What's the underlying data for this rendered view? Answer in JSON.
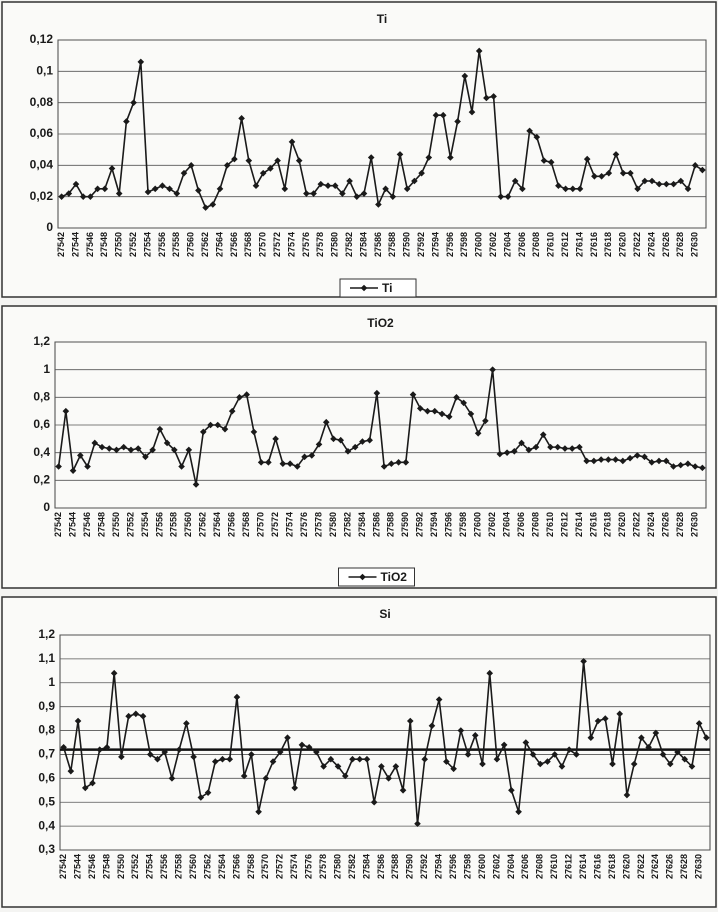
{
  "chart_data": [
    {
      "type": "line",
      "title": "Ti",
      "legend": "bottom",
      "grid": true,
      "categories": [
        "27542",
        null,
        "27544",
        null,
        "27546",
        null,
        "27548",
        null,
        "27550",
        null,
        "27552",
        null,
        "27554",
        null,
        "27556",
        null,
        "27558",
        null,
        "27560",
        null,
        "27562",
        null,
        "27564",
        null,
        "27566",
        null,
        "27568",
        null,
        "27570",
        null,
        "27572",
        null,
        "27574",
        null,
        "27576",
        null,
        "27578",
        null,
        "27580",
        null,
        "27582",
        null,
        "27584",
        null,
        "27586",
        null,
        "27588",
        null,
        "27590",
        null,
        "27592",
        null,
        "27594",
        null,
        "27596",
        null,
        "27598",
        null,
        "27600",
        null,
        "27602",
        null,
        "27604",
        null,
        "27606",
        null,
        "27608",
        null,
        "27610",
        null,
        "27612",
        null,
        "27614",
        null,
        "27616",
        null,
        "27618",
        null,
        "27620",
        null,
        "27622",
        null,
        "27624",
        null,
        "27626",
        null,
        "27628",
        null,
        "27630",
        null
      ],
      "series": [
        {
          "name": "Ti",
          "color": "#1a1a1a",
          "values": [
            0.02,
            0.022,
            0.028,
            0.02,
            0.02,
            0.025,
            0.025,
            0.038,
            0.022,
            0.068,
            0.08,
            0.106,
            0.023,
            0.025,
            0.027,
            0.025,
            0.022,
            0.035,
            0.04,
            0.024,
            0.013,
            0.015,
            0.025,
            0.04,
            0.044,
            0.07,
            0.043,
            0.027,
            0.035,
            0.038,
            0.043,
            0.025,
            0.055,
            0.043,
            0.022,
            0.022,
            0.028,
            0.027,
            0.027,
            0.022,
            0.03,
            0.02,
            0.022,
            0.045,
            0.015,
            0.025,
            0.02,
            0.047,
            0.025,
            0.03,
            0.035,
            0.045,
            0.072,
            0.072,
            0.045,
            0.068,
            0.097,
            0.074,
            0.113,
            0.083,
            0.084,
            0.02,
            0.02,
            0.03,
            0.025,
            0.062,
            0.058,
            0.043,
            0.042,
            0.027,
            0.025,
            0.025,
            0.025,
            0.044,
            0.033,
            0.033,
            0.035,
            0.047,
            0.035,
            0.035,
            0.025,
            0.03,
            0.03,
            0.028,
            0.028,
            0.028,
            0.03,
            0.025,
            0.04,
            0.037
          ]
        }
      ],
      "ylim": [
        0,
        0.12
      ],
      "yticks": [
        0,
        {
          "value": 0.02,
          "label": "0,02"
        },
        {
          "value": 0.04,
          "label": "0,04"
        },
        {
          "value": 0.06,
          "label": "0,06"
        },
        {
          "value": 0.08,
          "label": "0,08"
        },
        {
          "value": 0.1,
          "label": "0,1"
        },
        {
          "value": 0.12,
          "label": "0,12"
        }
      ]
    },
    {
      "type": "line",
      "title": "TiO2",
      "legend": "bottom",
      "grid": true,
      "categories": [
        "27542",
        null,
        "27544",
        null,
        "27546",
        null,
        "27548",
        null,
        "27550",
        null,
        "27552",
        null,
        "27554",
        null,
        "27556",
        null,
        "27558",
        null,
        "27560",
        null,
        "27562",
        null,
        "27564",
        null,
        "27566",
        null,
        "27568",
        null,
        "27570",
        null,
        "27572",
        null,
        "27574",
        null,
        "27576",
        null,
        "27578",
        null,
        "27580",
        null,
        "27582",
        null,
        "27584",
        null,
        "27586",
        null,
        "27588",
        null,
        "27590",
        null,
        "27592",
        null,
        "27594",
        null,
        "27596",
        null,
        "27598",
        null,
        "27600",
        null,
        "27602",
        null,
        "27604",
        null,
        "27606",
        null,
        "27608",
        null,
        "27610",
        null,
        "27612",
        null,
        "27614",
        null,
        "27616",
        null,
        "27618",
        null,
        "27620",
        null,
        "27622",
        null,
        "27624",
        null,
        "27626",
        null,
        "27628",
        null,
        "27630",
        null
      ],
      "series": [
        {
          "name": "TiO2",
          "color": "#1a1a1a",
          "values": [
            0.3,
            0.7,
            0.27,
            0.38,
            0.3,
            0.47,
            0.44,
            0.43,
            0.42,
            0.44,
            0.42,
            0.43,
            0.37,
            0.42,
            0.57,
            0.47,
            0.42,
            0.3,
            0.42,
            0.17,
            0.55,
            0.6,
            0.6,
            0.57,
            0.7,
            0.8,
            0.82,
            0.55,
            0.33,
            0.33,
            0.5,
            0.32,
            0.32,
            0.3,
            0.37,
            0.38,
            0.46,
            0.62,
            0.5,
            0.49,
            0.41,
            0.44,
            0.48,
            0.49,
            0.83,
            0.3,
            0.32,
            0.33,
            0.33,
            0.82,
            0.72,
            0.7,
            0.7,
            0.68,
            0.66,
            0.8,
            0.76,
            0.68,
            0.54,
            0.63,
            1.0,
            0.39,
            0.4,
            0.41,
            0.47,
            0.42,
            0.44,
            0.53,
            0.44,
            0.44,
            0.43,
            0.43,
            0.44,
            0.34,
            0.34,
            0.35,
            0.35,
            0.35,
            0.34,
            0.36,
            0.38,
            0.37,
            0.33,
            0.34,
            0.34,
            0.3,
            0.31,
            0.32,
            0.3,
            0.29
          ]
        }
      ],
      "ylim": [
        0,
        1.2
      ],
      "yticks": [
        0,
        {
          "value": 0.2,
          "label": "0,2"
        },
        {
          "value": 0.4,
          "label": "0,4"
        },
        {
          "value": 0.6,
          "label": "0,6"
        },
        {
          "value": 0.8,
          "label": "0,8"
        },
        1,
        {
          "value": 1.2,
          "label": "1,2"
        }
      ]
    },
    {
      "type": "line",
      "title": "Si",
      "grid": true,
      "reference_line": 0.72,
      "categories": [
        "27542",
        null,
        "27544",
        null,
        "27546",
        null,
        "27548",
        null,
        "27550",
        null,
        "27552",
        null,
        "27554",
        null,
        "27556",
        null,
        "27558",
        null,
        "27560",
        null,
        "27562",
        null,
        "27564",
        null,
        "27566",
        null,
        "27568",
        null,
        "27570",
        null,
        "27572",
        null,
        "27574",
        null,
        "27576",
        null,
        "27578",
        null,
        "27580",
        null,
        "27582",
        null,
        "27584",
        null,
        "27586",
        null,
        "27588",
        null,
        "27590",
        null,
        "27592",
        null,
        "27594",
        null,
        "27596",
        null,
        "27598",
        null,
        "27600",
        null,
        "27602",
        null,
        "27604",
        null,
        "27606",
        null,
        "27608",
        null,
        "27610",
        null,
        "27612",
        null,
        "27614",
        null,
        "27616",
        null,
        "27618",
        null,
        "27620",
        null,
        "27622",
        null,
        "27624",
        null,
        "27626",
        null,
        "27628",
        null,
        "27630",
        null
      ],
      "series": [
        {
          "color": "#1a1a1a",
          "values": [
            0.73,
            0.63,
            0.84,
            0.56,
            0.58,
            0.72,
            0.73,
            1.04,
            0.69,
            0.86,
            0.87,
            0.86,
            0.7,
            0.68,
            0.71,
            0.6,
            0.72,
            0.83,
            0.69,
            0.52,
            0.54,
            0.67,
            0.68,
            0.68,
            0.94,
            0.61,
            0.7,
            0.46,
            0.6,
            0.67,
            0.71,
            0.77,
            0.56,
            0.74,
            0.73,
            0.71,
            0.65,
            0.68,
            0.65,
            0.61,
            0.68,
            0.68,
            0.68,
            0.5,
            0.65,
            0.6,
            0.65,
            0.55,
            0.84,
            0.41,
            0.68,
            0.82,
            0.93,
            0.67,
            0.64,
            0.8,
            0.7,
            0.78,
            0.66,
            1.04,
            0.68,
            0.74,
            0.55,
            0.46,
            0.75,
            0.7,
            0.66,
            0.67,
            0.7,
            0.65,
            0.72,
            0.7,
            1.09,
            0.77,
            0.84,
            0.85,
            0.66,
            0.87,
            0.53,
            0.66,
            0.77,
            0.73,
            0.79,
            0.7,
            0.66,
            0.71,
            0.68,
            0.65,
            0.83,
            0.77
          ]
        }
      ],
      "ylim": [
        0.3,
        1.2
      ],
      "yticks": [
        {
          "value": 0.3,
          "label": "0,3"
        },
        {
          "value": 0.4,
          "label": "0,4"
        },
        {
          "value": 0.5,
          "label": "0,5"
        },
        {
          "value": 0.6,
          "label": "0,6"
        },
        {
          "value": 0.7,
          "label": "0,7"
        },
        {
          "value": 0.8,
          "label": "0,8"
        },
        {
          "value": 0.9,
          "label": "0,9"
        },
        1,
        {
          "value": 1.1,
          "label": "1,1"
        },
        {
          "value": 1.2,
          "label": "1,2"
        }
      ]
    }
  ]
}
